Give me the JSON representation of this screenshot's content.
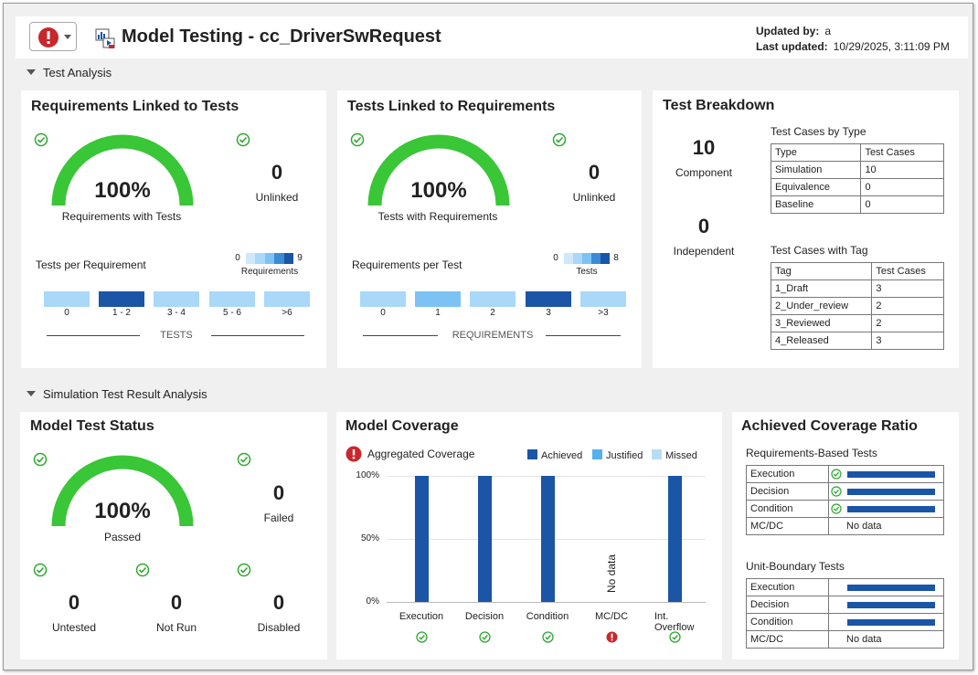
{
  "header": {
    "title": "Model Testing - cc_DriverSwRequest",
    "updated_by_label": "Updated by:",
    "updated_by": "a",
    "last_updated_label": "Last updated:",
    "last_updated": "10/29/2025, 3:11:09 PM"
  },
  "sections": {
    "test_analysis": "Test Analysis",
    "sim_analysis": "Simulation Test Result Analysis"
  },
  "req_linked": {
    "title": "Requirements Linked to Tests",
    "percent": "100%",
    "percent_value": 100,
    "gauge_label": "Requirements with Tests",
    "unlinked_count": "0",
    "unlinked_label": "Unlinked",
    "hist_title": "Tests per Requirement",
    "legend_min": "0",
    "legend_max": "9",
    "legend_label": "Requirements",
    "axis_label": "TESTS",
    "bins": [
      "0",
      "1 - 2",
      "3 - 4",
      "5 - 6",
      ">6"
    ],
    "bin_counts": [
      0,
      9,
      0,
      0,
      0
    ]
  },
  "tests_linked": {
    "title": "Tests Linked to Requirements",
    "percent": "100%",
    "percent_value": 100,
    "gauge_label": "Tests with Requirements",
    "unlinked_count": "0",
    "unlinked_label": "Unlinked",
    "hist_title": "Requirements per Test",
    "legend_min": "0",
    "legend_max": "8",
    "legend_label": "Tests",
    "axis_label": "REQUIREMENTS",
    "bins": [
      "0",
      "1",
      "2",
      "3",
      ">3"
    ],
    "bin_counts": [
      0,
      2,
      0,
      8,
      0
    ]
  },
  "breakdown": {
    "title": "Test Breakdown",
    "component_count": "10",
    "component_label": "Component",
    "independent_count": "0",
    "independent_label": "Independent",
    "by_type_title": "Test Cases by Type",
    "by_type_headers": [
      "Type",
      "Test Cases"
    ],
    "by_type_rows": [
      [
        "Simulation",
        "10"
      ],
      [
        "Equivalence",
        "0"
      ],
      [
        "Baseline",
        "0"
      ]
    ],
    "by_tag_title": "Test Cases with Tag",
    "by_tag_headers": [
      "Tag",
      "Test Cases"
    ],
    "by_tag_rows": [
      [
        "1_Draft",
        "3"
      ],
      [
        "2_Under_review",
        "2"
      ],
      [
        "3_Reviewed",
        "2"
      ],
      [
        "4_Released",
        "3"
      ]
    ]
  },
  "test_status": {
    "title": "Model Test Status",
    "percent": "100%",
    "percent_value": 100,
    "gauge_label": "Passed",
    "failed_count": "0",
    "failed_label": "Failed",
    "untested_count": "0",
    "untested_label": "Untested",
    "notrun_count": "0",
    "notrun_label": "Not Run",
    "disabled_count": "0",
    "disabled_label": "Disabled"
  },
  "coverage": {
    "title": "Model Coverage",
    "aggregated_label": "Aggregated Coverage",
    "legend": [
      "Achieved",
      "Justified",
      "Missed"
    ],
    "no_data_text": "No data",
    "metric_status": [
      "pass",
      "pass",
      "pass",
      "error",
      "pass"
    ]
  },
  "chart_data": {
    "type": "bar",
    "categories": [
      "Execution",
      "Decision",
      "Condition",
      "MC/DC",
      "Int. Overflow"
    ],
    "series": [
      {
        "name": "Achieved",
        "values": [
          100,
          100,
          100,
          null,
          100
        ]
      },
      {
        "name": "Justified",
        "values": [
          0,
          0,
          0,
          null,
          0
        ]
      },
      {
        "name": "Missed",
        "values": [
          0,
          0,
          0,
          null,
          0
        ]
      }
    ],
    "yticks": [
      "100%",
      "50%",
      "0%"
    ],
    "ylim": [
      0,
      100
    ],
    "legend_position": "top-right"
  },
  "ratio": {
    "title": "Achieved Coverage Ratio",
    "req_title": "Requirements-Based Tests",
    "req_rows": [
      {
        "metric": "Execution",
        "value": 1.0,
        "text": ""
      },
      {
        "metric": "Decision",
        "value": 1.0,
        "text": ""
      },
      {
        "metric": "Condition",
        "value": 1.0,
        "text": ""
      },
      {
        "metric": "MC/DC",
        "value": null,
        "text": "No data"
      }
    ],
    "unit_title": "Unit-Boundary Tests",
    "unit_rows": [
      {
        "metric": "Execution",
        "value": 1.0,
        "text": ""
      },
      {
        "metric": "Decision",
        "value": 1.0,
        "text": ""
      },
      {
        "metric": "Condition",
        "value": 1.0,
        "text": ""
      },
      {
        "metric": "MC/DC",
        "value": null,
        "text": "No data"
      }
    ]
  },
  "colors": {
    "gauge_green": "#39c637",
    "bar_dark": "#1a55a6",
    "bar_light": "#a9d8f8",
    "bar_mid": "#7cc3f4",
    "error_red": "#c8272c"
  }
}
